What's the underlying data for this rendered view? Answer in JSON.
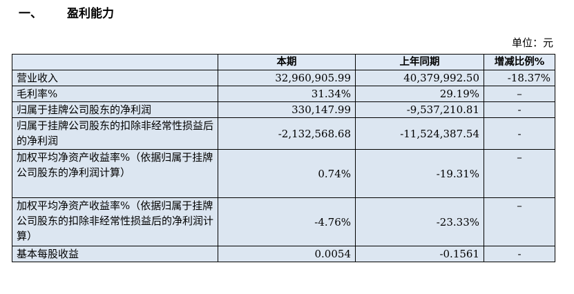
{
  "heading": {
    "number": "一、",
    "title": "盈利能力"
  },
  "unit": "单位：元",
  "table": {
    "headers": [
      "",
      "本期",
      "上年同期",
      "增减比例%"
    ],
    "rows": [
      {
        "label": "营业收入",
        "current": "32,960,905.99",
        "previous": "40,379,992.50",
        "change": "-18.37%"
      },
      {
        "label": "毛利率%",
        "current": "31.34%",
        "previous": "29.19%",
        "change": "–"
      },
      {
        "label": "归属于挂牌公司股东的净利润",
        "current": "330,147.99",
        "previous": "-9,537,210.81",
        "change": "-"
      },
      {
        "label": "归属于挂牌公司股东的扣除非经常性损益后的净利润",
        "current": "-2,132,568.68",
        "previous": "-11,524,387.54",
        "change": "-"
      },
      {
        "label": "加权平均净资产收益率%（依据归属于挂牌公司股东的净利润计算）",
        "current": "0.74%",
        "previous": "-19.31%",
        "change": "–"
      },
      {
        "label": "加权平均净资产收益率%（依据归属于挂牌公司股东的扣除非经常性损益后的净利润计算）",
        "current": "-4.76%",
        "previous": "-23.33%",
        "change": "–"
      },
      {
        "label": "基本每股收益",
        "current": "0.0054",
        "previous": "-0.1561",
        "change": "-"
      }
    ]
  }
}
